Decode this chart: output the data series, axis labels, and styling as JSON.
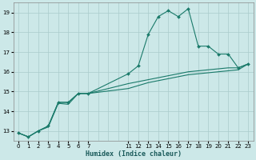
{
  "bg_color": "#cce8e8",
  "grid_color": "#aacccc",
  "line_color": "#1a7a6a",
  "xlabel": "Humidex (Indice chaleur)",
  "ylim": [
    12.5,
    19.5
  ],
  "yticks": [
    13,
    14,
    15,
    16,
    17,
    18,
    19
  ],
  "line1_y": [
    12.9,
    12.7,
    13.0,
    13.25,
    14.45,
    14.45,
    14.9,
    14.9,
    15.9,
    16.3,
    17.9,
    18.8,
    19.1,
    18.8,
    19.2,
    17.3,
    17.3,
    16.9,
    16.9,
    16.2,
    16.4
  ],
  "line2_y": [
    12.9,
    12.7,
    13.0,
    13.2,
    14.4,
    14.35,
    14.9,
    14.9,
    15.4,
    15.5,
    15.6,
    15.7,
    15.8,
    15.9,
    16.0,
    16.05,
    16.1,
    16.15,
    16.2,
    16.2,
    16.4
  ],
  "line3_y": [
    12.9,
    12.7,
    13.0,
    13.25,
    14.45,
    14.45,
    14.9,
    14.9,
    15.15,
    15.3,
    15.45,
    15.55,
    15.65,
    15.75,
    15.85,
    15.9,
    15.95,
    16.0,
    16.05,
    16.1,
    16.4
  ],
  "xtick_positions": [
    0,
    1,
    2,
    3,
    4,
    5,
    6,
    7,
    11,
    12,
    13,
    14,
    15,
    16,
    17,
    18,
    19,
    20,
    21,
    22,
    23
  ],
  "xtick_labels": [
    "0",
    "1",
    "2",
    "3",
    "4",
    "5",
    "6",
    "7",
    "11",
    "12",
    "13",
    "14",
    "15",
    "16",
    "17",
    "18",
    "19",
    "20",
    "21",
    "22",
    "23"
  ],
  "marker_style": "D",
  "marker_size": 2.0,
  "line_width": 0.8,
  "tick_fontsize": 5.0,
  "xlabel_fontsize": 6.0
}
